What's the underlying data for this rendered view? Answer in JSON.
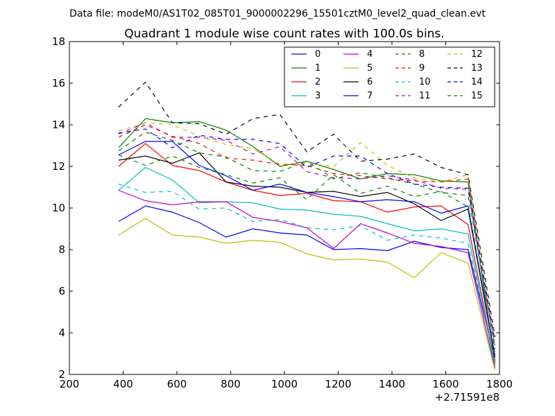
{
  "figure": {
    "suptitle": "Data file: modeM0/AS1T02_085T01_9000002296_15501cztM0_level2_quad_clean.evt"
  },
  "chart_data": {
    "type": "line",
    "title": "Quadrant 1 module wise count rates with 100.0s bins.",
    "xlabel": "",
    "ylabel": "",
    "x_offset_label": "+2.71591e8",
    "xlim": [
      200,
      1800
    ],
    "ylim": [
      2,
      18
    ],
    "xticks": [
      200,
      400,
      600,
      800,
      1000,
      1200,
      1400,
      1600,
      1800
    ],
    "yticks": [
      2,
      4,
      6,
      8,
      10,
      12,
      14,
      16,
      18
    ],
    "legend_position": "top-right",
    "legend_columns": 4,
    "x": [
      383,
      483,
      583,
      683,
      783,
      883,
      983,
      1083,
      1183,
      1283,
      1383,
      1483,
      1583,
      1683,
      1783
    ],
    "series": [
      {
        "name": "0",
        "color": "#0000ff",
        "dash": "solid",
        "values": [
          9.35,
          10.1,
          9.8,
          9.3,
          8.6,
          9.0,
          8.8,
          8.7,
          8.0,
          8.05,
          7.95,
          8.4,
          8.1,
          8.0,
          2.7
        ]
      },
      {
        "name": "1",
        "color": "#008000",
        "dash": "solid",
        "values": [
          12.9,
          14.3,
          14.1,
          14.15,
          13.75,
          12.95,
          12.0,
          12.25,
          11.85,
          11.4,
          11.65,
          11.6,
          11.3,
          11.25,
          2.6
        ]
      },
      {
        "name": "2",
        "color": "#ff0000",
        "dash": "solid",
        "values": [
          12.0,
          13.1,
          12.05,
          11.8,
          11.25,
          10.85,
          10.6,
          10.7,
          10.35,
          10.3,
          9.8,
          10.05,
          10.1,
          9.2,
          2.5
        ]
      },
      {
        "name": "3",
        "color": "#00bfbf",
        "dash": "solid",
        "values": [
          10.85,
          11.95,
          11.35,
          10.25,
          10.3,
          10.25,
          9.95,
          9.9,
          9.7,
          9.6,
          9.25,
          8.9,
          9.0,
          8.75,
          2.4
        ]
      },
      {
        "name": "4",
        "color": "#bf00bf",
        "dash": "solid",
        "values": [
          10.85,
          10.35,
          10.15,
          10.3,
          10.3,
          9.55,
          9.35,
          9.05,
          8.05,
          9.25,
          8.8,
          8.3,
          8.15,
          7.85,
          2.3
        ]
      },
      {
        "name": "5",
        "color": "#bfbf00",
        "dash": "solid",
        "values": [
          8.7,
          9.5,
          8.7,
          8.6,
          8.3,
          8.45,
          8.35,
          7.8,
          7.5,
          7.55,
          7.4,
          6.65,
          7.85,
          7.35,
          2.2
        ]
      },
      {
        "name": "6",
        "color": "#000000",
        "dash": "solid",
        "values": [
          12.3,
          12.5,
          12.15,
          12.65,
          11.25,
          11.05,
          11.0,
          10.75,
          10.8,
          10.55,
          10.75,
          10.2,
          9.4,
          9.95,
          2.8
        ]
      },
      {
        "name": "7",
        "color": "#0000ff",
        "dash": "solid",
        "values": [
          12.55,
          13.2,
          13.2,
          12.05,
          11.55,
          10.85,
          11.15,
          10.75,
          10.55,
          10.3,
          10.4,
          10.3,
          9.75,
          10.1,
          2.9
        ]
      },
      {
        "name": "8",
        "color": "#008000",
        "dash": "dashed",
        "values": [
          12.55,
          12.05,
          12.5,
          11.95,
          11.6,
          11.2,
          11.45,
          10.4,
          11.6,
          10.7,
          11.05,
          10.55,
          10.8,
          10.05,
          3.0
        ]
      },
      {
        "name": "9",
        "color": "#ff0000",
        "dash": "dashed",
        "values": [
          13.4,
          14.0,
          13.45,
          13.1,
          12.4,
          12.3,
          12.1,
          12.05,
          11.65,
          11.55,
          11.4,
          11.3,
          11.25,
          11.4,
          3.3
        ]
      },
      {
        "name": "10",
        "color": "#00bfbf",
        "dash": "dashed",
        "values": [
          11.15,
          10.75,
          10.8,
          9.95,
          10.0,
          9.35,
          9.45,
          9.05,
          8.95,
          9.15,
          8.45,
          8.7,
          8.55,
          8.3,
          2.7
        ]
      },
      {
        "name": "11",
        "color": "#bf00bf",
        "dash": "dashed",
        "values": [
          13.55,
          14.1,
          13.4,
          13.4,
          13.25,
          12.6,
          12.95,
          11.75,
          11.45,
          11.4,
          11.55,
          11.35,
          10.95,
          10.9,
          3.2
        ]
      },
      {
        "name": "12",
        "color": "#bfbf00",
        "dash": "dashed",
        "values": [
          13.7,
          14.1,
          14.0,
          13.45,
          13.05,
          12.85,
          12.1,
          12.15,
          12.0,
          13.15,
          12.05,
          11.45,
          11.25,
          11.6,
          3.4
        ]
      },
      {
        "name": "13",
        "color": "#000000",
        "dash": "dashed",
        "values": [
          14.85,
          16.05,
          14.1,
          14.05,
          13.55,
          14.3,
          14.5,
          12.7,
          13.55,
          12.25,
          12.35,
          12.6,
          11.95,
          11.6,
          3.8
        ]
      },
      {
        "name": "14",
        "color": "#0000ff",
        "dash": "dashed",
        "values": [
          13.6,
          13.8,
          12.9,
          13.5,
          13.3,
          13.3,
          13.1,
          11.95,
          12.5,
          12.5,
          11.65,
          11.15,
          11.0,
          10.95,
          3.6
        ]
      },
      {
        "name": "15",
        "color": "#008000",
        "dash": "dashed",
        "values": [
          12.75,
          13.65,
          13.25,
          12.65,
          12.45,
          11.8,
          11.75,
          12.25,
          11.4,
          11.7,
          11.45,
          11.15,
          10.75,
          10.6,
          3.4
        ]
      }
    ]
  }
}
